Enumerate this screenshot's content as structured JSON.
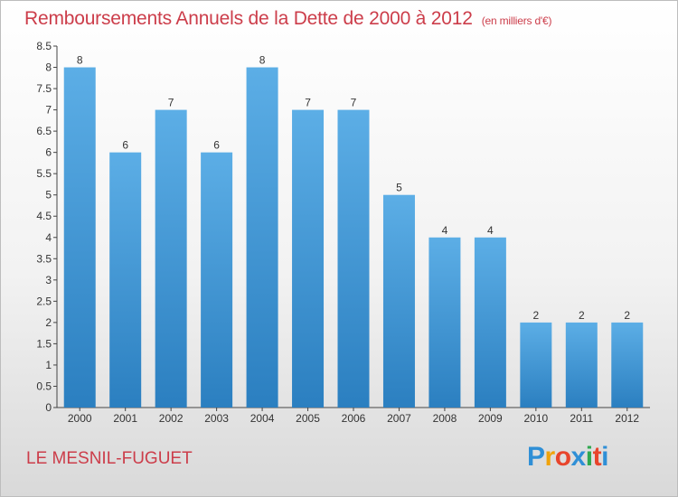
{
  "title": "Remboursements Annuels de la Dette de 2000 à 2012",
  "unit": "(en milliers d'€)",
  "commune": "LE MESNIL-FUGUET",
  "logo": {
    "letters": [
      "P",
      "r",
      "o",
      "x",
      "i",
      "t",
      "i"
    ],
    "colors": [
      "#2f8fd6",
      "#f0a30a",
      "#e8452c",
      "#2f8fd6",
      "#2fa84f",
      "#e8452c",
      "#2f8fd6"
    ]
  },
  "colors": {
    "bar_light": "#5caee6",
    "bar_dark": "#2b7fc0",
    "title": "#cc3d4a"
  },
  "chart_data": {
    "type": "bar",
    "categories": [
      "2000",
      "2001",
      "2002",
      "2003",
      "2004",
      "2005",
      "2006",
      "2007",
      "2008",
      "2009",
      "2010",
      "2011",
      "2012"
    ],
    "values": [
      8,
      6,
      7,
      6,
      8,
      7,
      7,
      5,
      4,
      4,
      2,
      2,
      2
    ],
    "data_labels": [
      "8",
      "6",
      "7",
      "6",
      "8",
      "7",
      "7",
      "5",
      "4",
      "4",
      "2",
      "2",
      "2"
    ],
    "yticks": [
      "0",
      "0.5",
      "1",
      "1.5",
      "2",
      "2.5",
      "3",
      "3.5",
      "4",
      "4.5",
      "5",
      "5.5",
      "6",
      "6.5",
      "7",
      "7.5",
      "8",
      "8.5"
    ],
    "ylim": [
      0,
      8.5
    ],
    "grid": false
  }
}
